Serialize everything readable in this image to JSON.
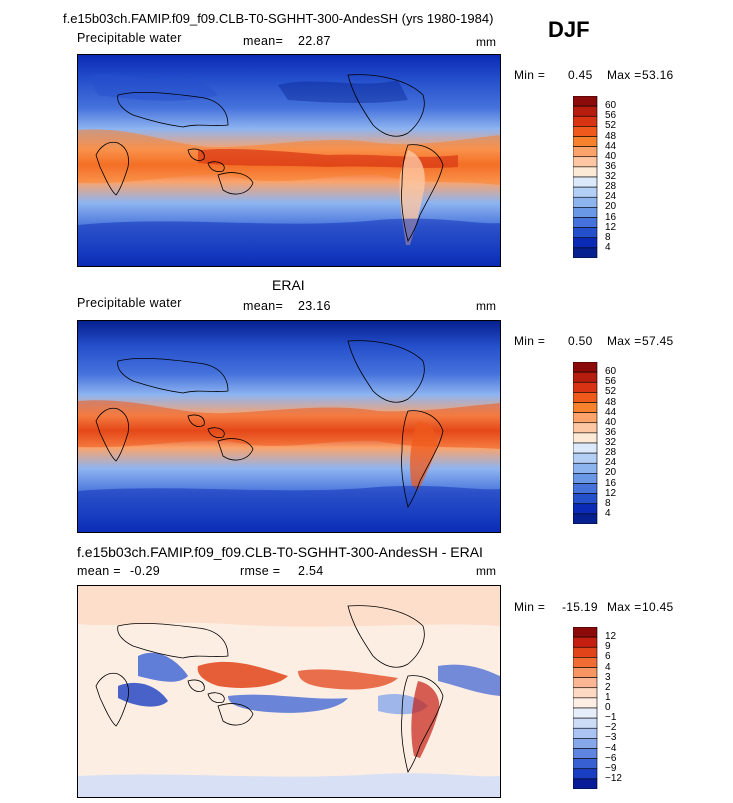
{
  "figure": {
    "title": "f.e15b03ch.FAMIP.f09_f09.CLB-T0-SGHHT-300-AndesSH (yrs 1980-1984)",
    "season": "DJF"
  },
  "panels": [
    {
      "label": "Precipitable water",
      "mean_label": "mean=",
      "mean_value": "22.87",
      "units": "mm",
      "min_label": "Min =",
      "min_value": "0.45",
      "max_label": "Max =",
      "max_value": "53.16",
      "colorbar_levels": [
        "60",
        "56",
        "52",
        "48",
        "44",
        "40",
        "36",
        "32",
        "28",
        "24",
        "20",
        "16",
        "12",
        "8",
        "4"
      ]
    },
    {
      "section_title": "ERAI",
      "label": "Precipitable water",
      "mean_label": "mean=",
      "mean_value": "23.16",
      "units": "mm",
      "min_label": "Min =",
      "min_value": "0.50",
      "max_label": "Max =",
      "max_value": "57.45",
      "colorbar_levels": [
        "60",
        "56",
        "52",
        "48",
        "44",
        "40",
        "36",
        "32",
        "28",
        "24",
        "20",
        "16",
        "12",
        "8",
        "4"
      ]
    },
    {
      "section_title": "f.e15b03ch.FAMIP.f09_f09.CLB-T0-SGHHT-300-AndesSH - ERAI",
      "mean_label": "mean =",
      "mean_value": "-0.29",
      "rmse_label": "rmse =",
      "rmse_value": "2.54",
      "units": "mm",
      "min_label": "Min =",
      "min_value": "-15.19",
      "max_label": "Max =",
      "max_value": "10.45",
      "colorbar_levels": [
        "12",
        "9",
        "6",
        "4",
        "3",
        "2",
        "1",
        "0",
        "−1",
        "−2",
        "−3",
        "−4",
        "−6",
        "−9",
        "−12"
      ]
    }
  ],
  "colors": {
    "abs_scale": [
      "#8b0a0a",
      "#b51d0f",
      "#d83414",
      "#ef5a1c",
      "#f7822e",
      "#fba36b",
      "#fdc7a3",
      "#fce9d6",
      "#dce9fb",
      "#b4cff5",
      "#8eb4f0",
      "#6a97e6",
      "#4672dc",
      "#2550cc",
      "#0b2bb6",
      "#06208f"
    ],
    "diff_scale": [
      "#8b0a0a",
      "#c51f12",
      "#e2441a",
      "#f26d33",
      "#f89663",
      "#fbb795",
      "#fdd9c4",
      "#fdeee4",
      "#e6eefb",
      "#cddcf7",
      "#aac3f2",
      "#86a8ea",
      "#5f85e0",
      "#3860d3",
      "#1a3ec2",
      "#071c96"
    ]
  },
  "chart_data": [
    {
      "type": "heatmap",
      "title": "Precipitable water",
      "units": "mm",
      "mean": 22.87,
      "min": 0.45,
      "max": 53.16,
      "colorbar_levels": [
        4,
        8,
        12,
        16,
        20,
        24,
        28,
        32,
        36,
        40,
        44,
        48,
        52,
        56,
        60
      ],
      "x_range": [
        0,
        360
      ],
      "y_range": [
        -90,
        90
      ]
    },
    {
      "type": "heatmap",
      "title": "Precipitable water",
      "units": "mm",
      "mean": 23.16,
      "min": 0.5,
      "max": 57.45,
      "colorbar_levels": [
        4,
        8,
        12,
        16,
        20,
        24,
        28,
        32,
        36,
        40,
        44,
        48,
        52,
        56,
        60
      ],
      "x_range": [
        0,
        360
      ],
      "y_range": [
        -90,
        90
      ]
    },
    {
      "type": "heatmap",
      "title": "f.e15b03ch.FAMIP.f09_f09.CLB-T0-SGHHT-300-AndesSH - ERAI",
      "units": "mm",
      "mean": -0.29,
      "rmse": 2.54,
      "min": -15.19,
      "max": 10.45,
      "colorbar_levels": [
        -12,
        -9,
        -6,
        -4,
        -3,
        -2,
        -1,
        0,
        1,
        2,
        3,
        4,
        6,
        9,
        12
      ],
      "x_range": [
        0,
        360
      ],
      "y_range": [
        -90,
        90
      ]
    }
  ]
}
